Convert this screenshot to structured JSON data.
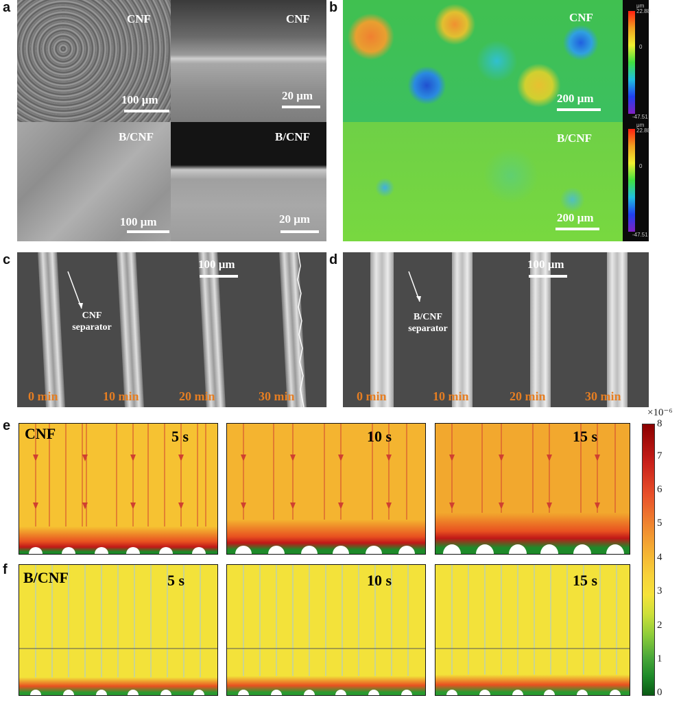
{
  "panel_labels": {
    "a": "a",
    "b": "b",
    "c": "c",
    "d": "d",
    "e": "e",
    "f": "f"
  },
  "panel_a": {
    "cnf_surface": {
      "label": "CNF",
      "scale": "100 μm"
    },
    "cnf_cross": {
      "label": "CNF",
      "scale": "20 μm"
    },
    "bcnf_surface": {
      "label": "B/CNF",
      "scale": "100 μm"
    },
    "bcnf_cross": {
      "label": "B/CNF",
      "scale": "20 μm"
    }
  },
  "panel_b": {
    "top": {
      "label": "CNF",
      "scale": "200 μm",
      "cb_unit": "μm",
      "cb_max": "22.88",
      "cb_mid": "0",
      "cb_min": "-47.51"
    },
    "bottom": {
      "label": "B/CNF",
      "scale": "200 μm",
      "cb_unit": "μm",
      "cb_max": "22.88",
      "cb_mid": "0",
      "cb_min": "-47.51"
    }
  },
  "panel_c": {
    "annotation_line1": "CNF",
    "annotation_line2": "separator",
    "scale": "100 μm",
    "times": [
      "0 min",
      "10 min",
      "20 min",
      "30 min"
    ]
  },
  "panel_d": {
    "annotation_line1": "B/CNF",
    "annotation_line2": "separator",
    "scale": "100 μm",
    "times": [
      "0 min",
      "10 min",
      "20 min",
      "30 min"
    ]
  },
  "panel_e": {
    "title": "CNF",
    "times": [
      "5 s",
      "10 s",
      "15 s"
    ]
  },
  "panel_f": {
    "title": "B/CNF",
    "times": [
      "5 s",
      "10 s",
      "15 s"
    ]
  },
  "colorbar": {
    "multiplier": "×10⁻⁶",
    "ticks": [
      "8",
      "7",
      "6",
      "5",
      "4",
      "3",
      "2",
      "1",
      "0"
    ],
    "colors": {
      "max": "#8b0000",
      "mid": "#f5e23a",
      "min": "#0a5a14"
    }
  }
}
